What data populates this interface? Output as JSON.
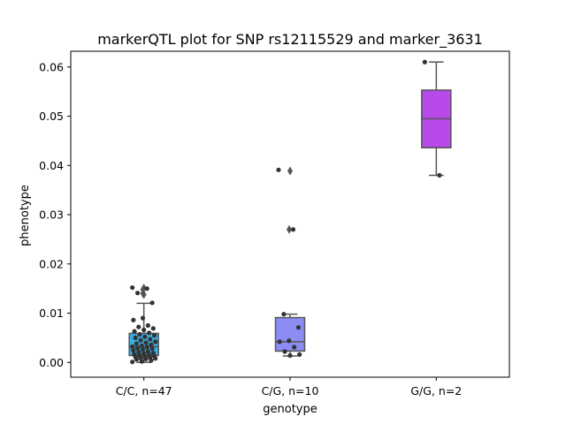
{
  "chart_data": {
    "type": "box",
    "title": "markerQTL plot for SNP rs12115529 and marker_3631",
    "xlabel": "genotype",
    "ylabel": "phenotype",
    "categories": [
      "C/C, n=47",
      "C/G, n=10",
      "G/G, n=2"
    ],
    "ylim": [
      -0.003,
      0.0632
    ],
    "yticks": [
      "0.00",
      "0.01",
      "0.02",
      "0.03",
      "0.04",
      "0.05",
      "0.06"
    ],
    "grid": false,
    "colors": [
      "#3aaee3",
      "#8c8cf5",
      "#b84ae9"
    ],
    "boxes": [
      {
        "category": "C/C, n=47",
        "whislo": 0.0,
        "q1": 0.0014,
        "median": 0.0032,
        "q3": 0.0059,
        "whishi": 0.012,
        "fliers": [
          0.0151,
          0.014,
          0.0138,
          0.0148
        ]
      },
      {
        "category": "C/G, n=10",
        "whislo": 0.0013,
        "q1": 0.0023,
        "median": 0.0042,
        "q3": 0.0091,
        "whishi": 0.0098,
        "fliers": [
          0.0389,
          0.027
        ]
      },
      {
        "category": "G/G, n=2",
        "whislo": 0.038,
        "q1": 0.0436,
        "median": 0.0495,
        "q3": 0.0553,
        "whishi": 0.061,
        "fliers": []
      }
    ],
    "points": [
      [
        0.0152,
        0.015,
        0.0141,
        0.0121,
        0.009,
        0.0086,
        0.0075,
        0.0072,
        0.0069,
        0.0066,
        0.0063,
        0.006,
        0.0057,
        0.0055,
        0.0052,
        0.005,
        0.0047,
        0.0045,
        0.0042,
        0.004,
        0.0038,
        0.0036,
        0.0034,
        0.0032,
        0.0031,
        0.0029,
        0.0028,
        0.0026,
        0.0024,
        0.0022,
        0.0021,
        0.0019,
        0.0018,
        0.0016,
        0.0015,
        0.0014,
        0.0013,
        0.0012,
        0.0011,
        0.001,
        0.0009,
        0.0008,
        0.0007,
        0.0006,
        0.0004,
        0.0002,
        0.0001
      ],
      [
        0.0391,
        0.027,
        0.0098,
        0.0071,
        0.0044,
        0.0042,
        0.0031,
        0.0022,
        0.0016,
        0.0014
      ],
      [
        0.061,
        0.038
      ]
    ]
  }
}
